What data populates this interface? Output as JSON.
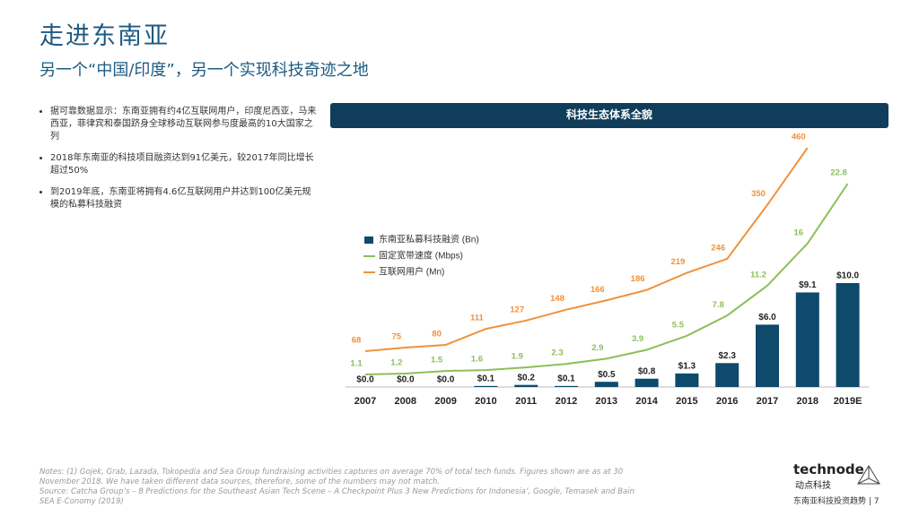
{
  "header": {
    "title": "走进东南亚",
    "subtitle": "另一个“中国/印度”，另一个实现科技奇迹之地"
  },
  "bullets": [
    "据可靠数据显示：东南亚拥有约4亿互联网用户，印度尼西亚，马来西亚，菲律宾和泰国跻身全球移动互联网参与度最高的10大国家之列",
    "2018年东南亚的科技项目融资达到91亿美元，较2017年同比增长超过50%",
    "到2019年底，东南亚将拥有4.6亿互联网用户并达到100亿美元规模的私募科技融资"
  ],
  "chart_data": {
    "type": "combo",
    "title": "科技生态体系全貌",
    "categories": [
      "2007",
      "2008",
      "2009",
      "2010",
      "2011",
      "2012",
      "2013",
      "2014",
      "2015",
      "2016",
      "2017",
      "2018",
      "2019E"
    ],
    "series": [
      {
        "name": "东南亚私募科技融资 (Bn)",
        "type": "bar",
        "color": "#0d4a6b",
        "values": [
          0.0,
          0.0,
          0.0,
          0.1,
          0.2,
          0.1,
          0.5,
          0.8,
          1.3,
          2.3,
          6.0,
          9.1,
          10.0
        ],
        "value_labels": [
          "$0.0",
          "$0.0",
          "$0.0",
          "$0.1",
          "$0.2",
          "$0.1",
          "$0.5",
          "$0.8",
          "$1.3",
          "$2.3",
          "$6.0",
          "$9.1",
          "$10.0"
        ]
      },
      {
        "name": "固定宽带速度 (Mbps)",
        "type": "line",
        "color": "#8cbf5a",
        "values": [
          1.1,
          1.2,
          1.5,
          1.6,
          1.9,
          2.3,
          2.9,
          3.9,
          5.5,
          7.8,
          11.2,
          16,
          22.8
        ]
      },
      {
        "name": "互联网用户 (Mn)",
        "type": "line",
        "color": "#f0913a",
        "values": [
          68,
          75,
          80,
          111,
          127,
          148,
          166,
          186,
          219,
          246,
          350,
          460,
          null
        ]
      }
    ]
  },
  "notes": "Notes: (1) Gojek, Grab, Lazada, Tokopedia and Sea Group fundraising activities captures on average 70% of total tech funds. Figures shown are as at 30 November 2018. We have taken different data sources, therefore, some of the numbers may not match.",
  "source": "Source: Catcha Group’s – 8 Predictions for the Southeast Asian Tech Scene – A Checkpoint Plus 3 New Predictions for Indonesia’, Google, Temasek and Bain SEA E-Conomy (2019)",
  "footer": {
    "logo": "technode",
    "logo_cn": "动点科技",
    "page": "东南亚科技投资趋势 | 7"
  }
}
